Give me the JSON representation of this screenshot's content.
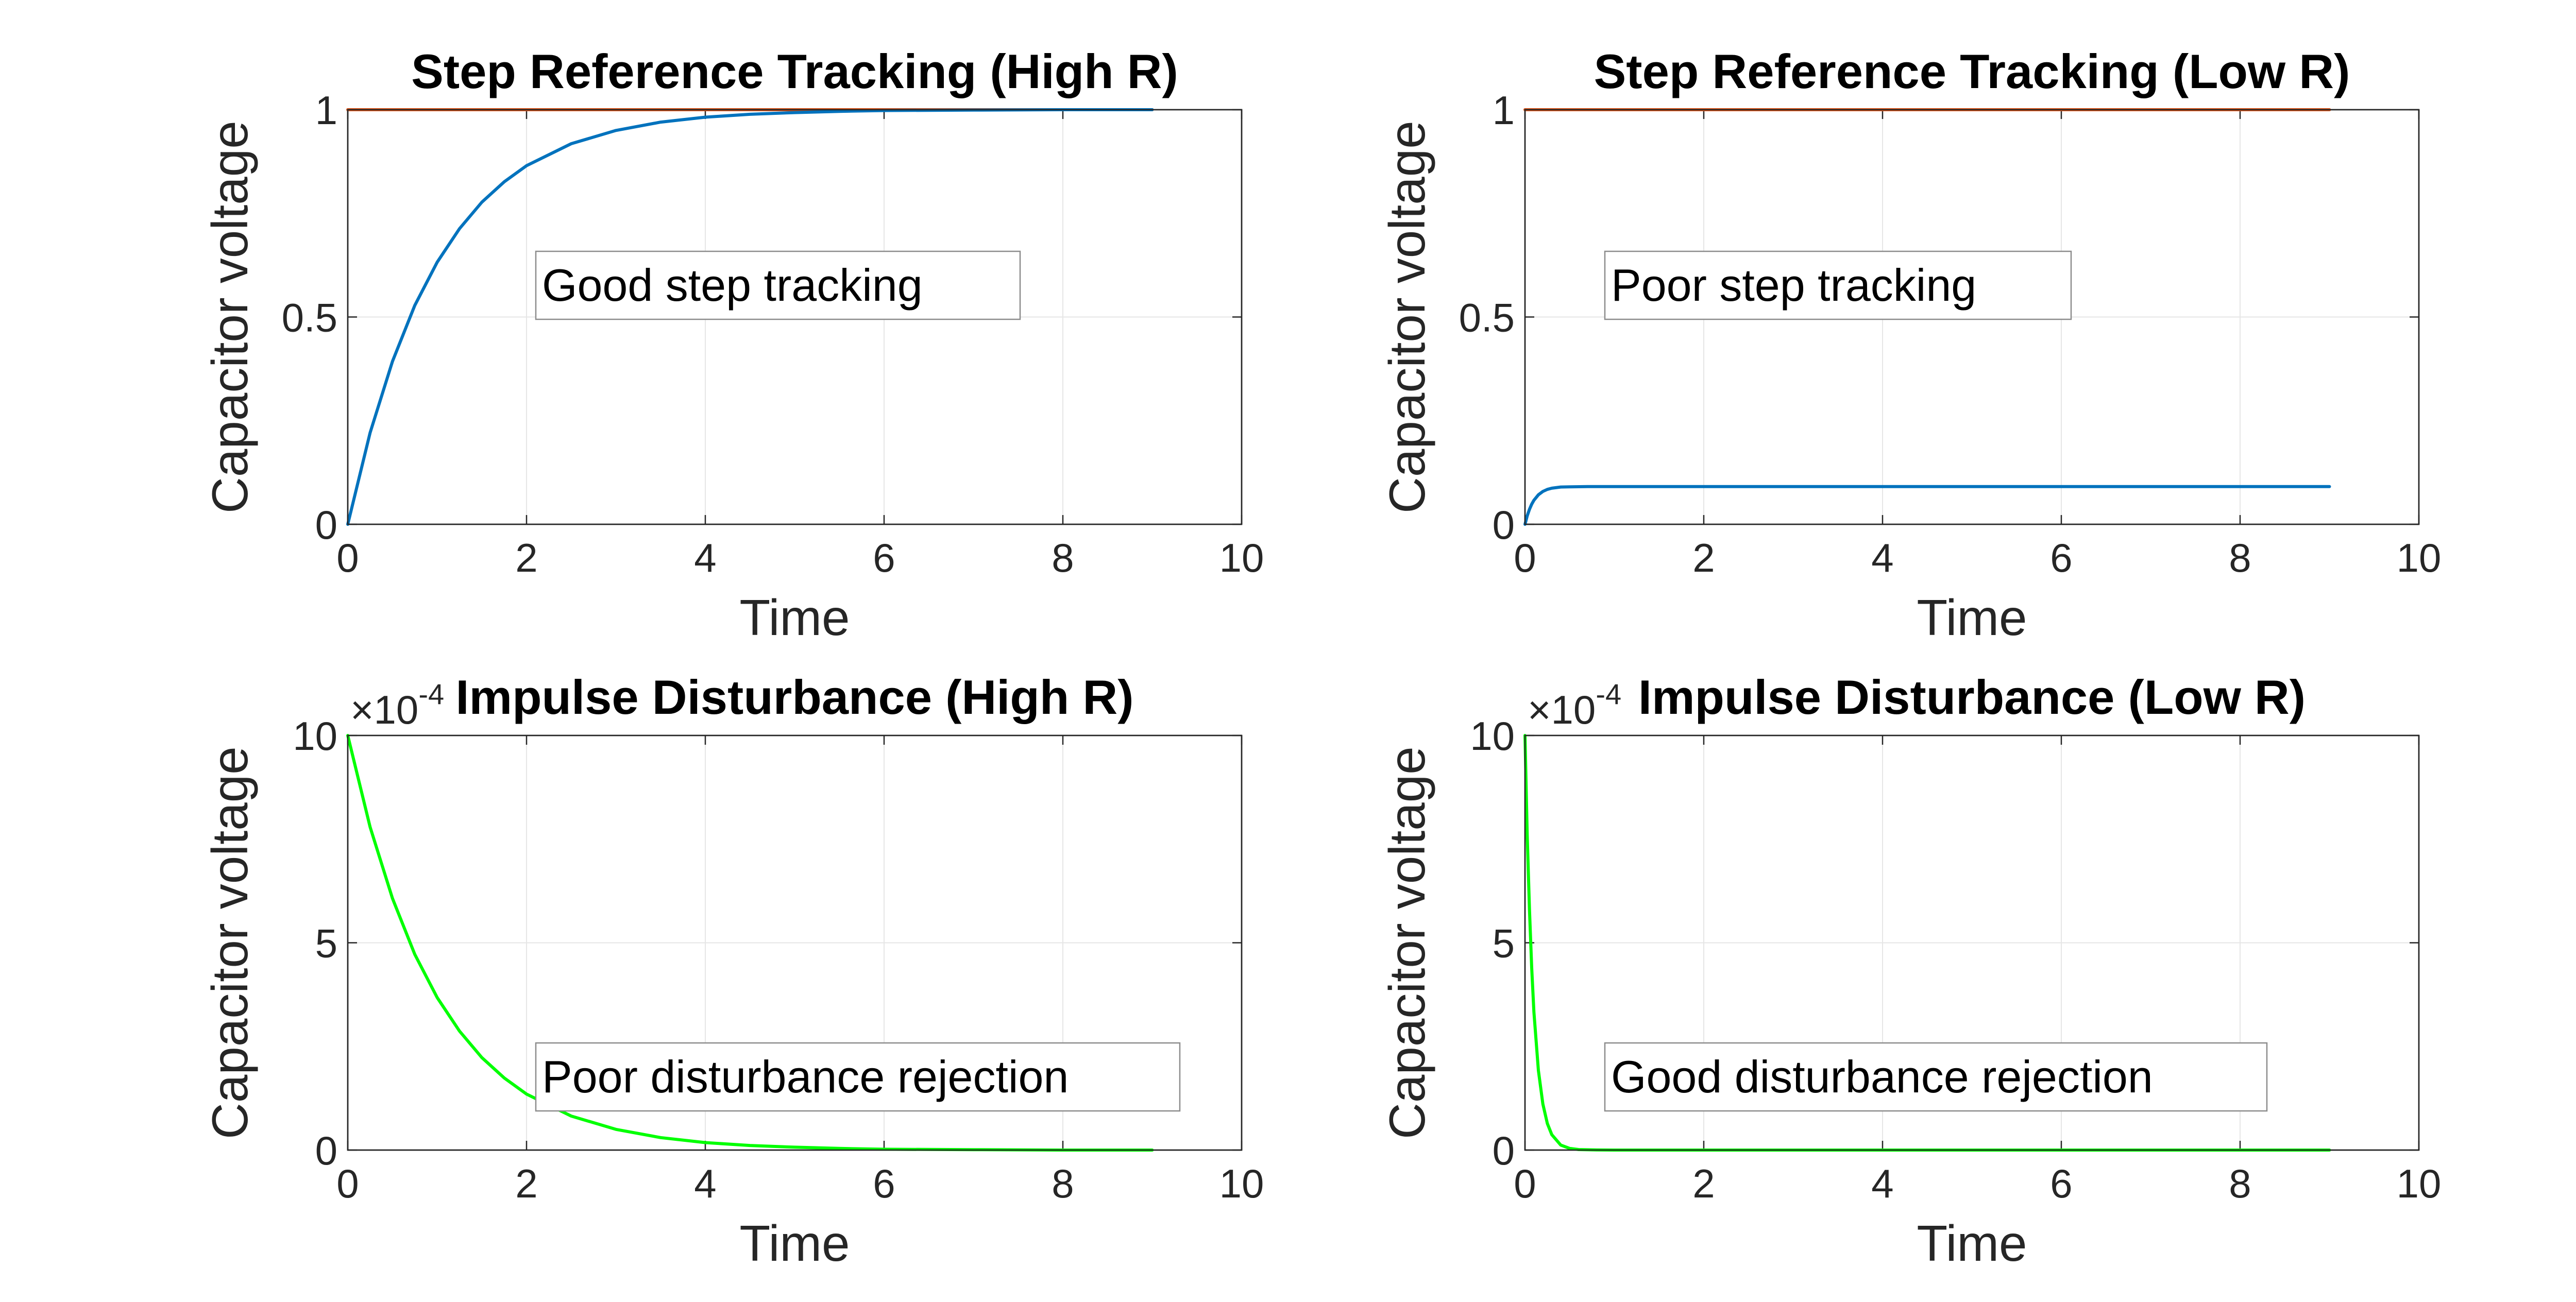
{
  "chart_data": [
    {
      "type": "line",
      "title": "Step Reference Tracking (High R)",
      "xlabel": "Time",
      "ylabel": "Capacitor voltage",
      "xlim": [
        0,
        10
      ],
      "ylim": [
        0,
        1
      ],
      "xticks": [
        "0",
        "2",
        "4",
        "6",
        "8",
        "10"
      ],
      "yticks": [
        "0",
        "0.5",
        "1"
      ],
      "grid": true,
      "annotation": "Good step tracking",
      "series": [
        {
          "color": "#D95319",
          "x": [
            0,
            9
          ],
          "y": [
            1,
            1
          ]
        },
        {
          "color": "#0072BD",
          "x": [
            0,
            0.25,
            0.5,
            0.75,
            1,
            1.25,
            1.5,
            1.75,
            2,
            2.5,
            3,
            3.5,
            4,
            4.5,
            5,
            5.5,
            6,
            7,
            8,
            9
          ],
          "y": [
            0,
            0.221,
            0.393,
            0.528,
            0.632,
            0.713,
            0.777,
            0.826,
            0.865,
            0.918,
            0.95,
            0.97,
            0.982,
            0.989,
            0.993,
            0.996,
            0.998,
            0.999,
            1.0,
            1.0
          ]
        }
      ]
    },
    {
      "type": "line",
      "title": "Step Reference Tracking (Low R)",
      "xlabel": "Time",
      "ylabel": "Capacitor voltage",
      "xlim": [
        0,
        10
      ],
      "ylim": [
        0,
        1
      ],
      "xticks": [
        "0",
        "2",
        "4",
        "6",
        "8",
        "10"
      ],
      "yticks": [
        "0",
        "0.5",
        "1"
      ],
      "grid": true,
      "annotation": "Poor step tracking",
      "series": [
        {
          "color": "#D95319",
          "x": [
            0,
            9
          ],
          "y": [
            1,
            1
          ]
        },
        {
          "color": "#0072BD",
          "x": [
            0,
            0.025,
            0.05,
            0.075,
            0.1,
            0.15,
            0.2,
            0.25,
            0.3,
            0.4,
            0.5,
            0.7,
            1,
            2,
            4,
            6,
            8,
            9
          ],
          "y": [
            0,
            0.0203,
            0.0361,
            0.0484,
            0.0579,
            0.0712,
            0.0793,
            0.0842,
            0.0871,
            0.0899,
            0.0903,
            0.0909,
            0.0909,
            0.0909,
            0.0909,
            0.0909,
            0.0909,
            0.0909
          ]
        }
      ]
    },
    {
      "type": "line",
      "title": "Impulse Disturbance (High R)",
      "xlabel": "Time",
      "ylabel": "Capacitor voltage",
      "xlim": [
        0,
        10
      ],
      "ylim": [
        0,
        10
      ],
      "xticks": [
        "0",
        "2",
        "4",
        "6",
        "8",
        "10"
      ],
      "yticks": [
        "0",
        "5",
        "10"
      ],
      "y_exponent_base": "×10",
      "y_exponent_power": "-4",
      "grid": true,
      "annotation": "Poor disturbance rejection",
      "series": [
        {
          "color": "#00FF00",
          "x": [
            0,
            0.25,
            0.5,
            0.75,
            1,
            1.25,
            1.5,
            1.75,
            2,
            2.5,
            3,
            3.5,
            4,
            4.5,
            5,
            5.5,
            6,
            7,
            8,
            9
          ],
          "y": [
            10,
            7.79,
            6.07,
            4.72,
            3.68,
            2.87,
            2.23,
            1.74,
            1.35,
            0.82,
            0.5,
            0.3,
            0.18,
            0.11,
            0.07,
            0.04,
            0.02,
            0.01,
            0.0,
            0.0
          ]
        }
      ]
    },
    {
      "type": "line",
      "title": "Impulse Disturbance (Low R)",
      "xlabel": "Time",
      "ylabel": "Capacitor voltage",
      "xlim": [
        0,
        10
      ],
      "ylim": [
        0,
        10
      ],
      "xticks": [
        "0",
        "2",
        "4",
        "6",
        "8",
        "10"
      ],
      "yticks": [
        "0",
        "5",
        "10"
      ],
      "y_exponent_base": "×10",
      "y_exponent_power": "-4",
      "grid": true,
      "annotation": "Good disturbance rejection",
      "series": [
        {
          "color": "#00FF00",
          "x": [
            0,
            0.025,
            0.05,
            0.075,
            0.1,
            0.15,
            0.2,
            0.25,
            0.3,
            0.4,
            0.5,
            0.6,
            0.8,
            1,
            2,
            4,
            6,
            8,
            9
          ],
          "y": [
            10,
            7.6,
            5.8,
            4.4,
            3.33,
            1.92,
            1.11,
            0.64,
            0.37,
            0.12,
            0.04,
            0.013,
            0.002,
            0.0,
            0.0,
            0.0,
            0.0,
            0.0,
            0.0
          ]
        }
      ]
    }
  ]
}
